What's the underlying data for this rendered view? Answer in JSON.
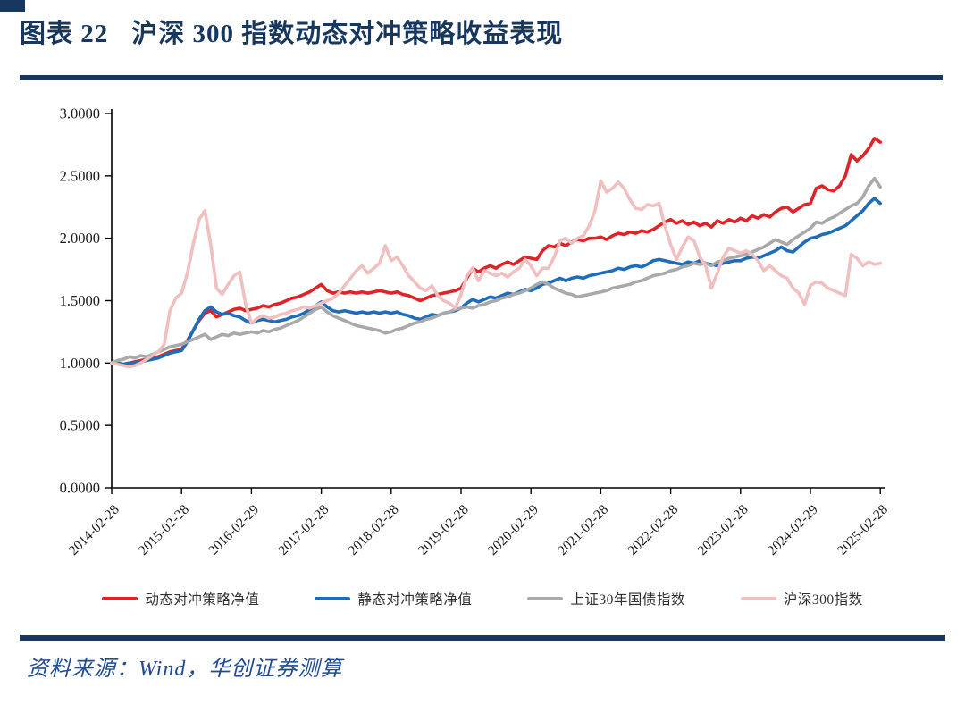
{
  "page": {
    "title_prefix": "图表 22",
    "title_text": "沪深 300 指数动态对冲策略收益表现",
    "source": "资料来源：Wind，华创证券测算",
    "accent_color": "#17375e",
    "source_color": "#1e4b91"
  },
  "chart_data": {
    "type": "line",
    "title": "沪深300指数动态对冲策略收益表现",
    "xlabel": "",
    "ylabel": "",
    "ylim": [
      0.0,
      3.0
    ],
    "y_tick_step": 0.5,
    "y_ticks": [
      "0.0000",
      "0.5000",
      "1.0000",
      "1.5000",
      "2.0000",
      "2.5000",
      "3.0000"
    ],
    "grid": false,
    "legend_position": "bottom",
    "x_unit": "monthly points from 2014-02 to 2025-02",
    "x_labels": [
      "2014-02-28",
      "2015-02-28",
      "2016-02-29",
      "2017-02-28",
      "2018-02-28",
      "2019-02-28",
      "2020-02-29",
      "2021-02-28",
      "2022-02-28",
      "2023-02-28",
      "2024-02-29",
      "2025-02-28"
    ],
    "x_label_months": [
      0,
      12,
      24,
      36,
      48,
      60,
      72,
      84,
      96,
      108,
      120,
      132
    ],
    "series": [
      {
        "name": "动态对冲策略净值",
        "color": "#de2428",
        "values": [
          1.0,
          1.0,
          0.99,
          1.0,
          1.01,
          1.02,
          1.03,
          1.04,
          1.05,
          1.07,
          1.09,
          1.1,
          1.11,
          1.18,
          1.26,
          1.34,
          1.4,
          1.42,
          1.37,
          1.39,
          1.41,
          1.43,
          1.44,
          1.42,
          1.43,
          1.44,
          1.46,
          1.45,
          1.47,
          1.48,
          1.5,
          1.52,
          1.53,
          1.55,
          1.57,
          1.6,
          1.63,
          1.58,
          1.56,
          1.57,
          1.56,
          1.57,
          1.56,
          1.57,
          1.56,
          1.57,
          1.58,
          1.57,
          1.56,
          1.57,
          1.55,
          1.54,
          1.52,
          1.5,
          1.52,
          1.54,
          1.55,
          1.56,
          1.57,
          1.58,
          1.6,
          1.68,
          1.76,
          1.73,
          1.76,
          1.78,
          1.76,
          1.79,
          1.81,
          1.79,
          1.82,
          1.85,
          1.84,
          1.83,
          1.9,
          1.94,
          1.93,
          1.96,
          1.94,
          1.97,
          1.99,
          1.98,
          2.0,
          2.0,
          2.01,
          1.99,
          2.02,
          2.04,
          2.03,
          2.05,
          2.04,
          2.06,
          2.05,
          2.07,
          2.1,
          2.13,
          2.15,
          2.12,
          2.14,
          2.11,
          2.13,
          2.1,
          2.12,
          2.09,
          2.14,
          2.12,
          2.15,
          2.13,
          2.16,
          2.14,
          2.18,
          2.16,
          2.19,
          2.17,
          2.21,
          2.24,
          2.25,
          2.21,
          2.24,
          2.27,
          2.28,
          2.4,
          2.42,
          2.39,
          2.38,
          2.42,
          2.5,
          2.67,
          2.62,
          2.66,
          2.72,
          2.8,
          2.77
        ]
      },
      {
        "name": "静态对冲策略净值",
        "color": "#1f6db8",
        "values": [
          1.0,
          1.0,
          0.99,
          1.0,
          1.0,
          1.01,
          1.02,
          1.03,
          1.04,
          1.06,
          1.08,
          1.09,
          1.1,
          1.17,
          1.26,
          1.35,
          1.42,
          1.45,
          1.41,
          1.39,
          1.4,
          1.38,
          1.37,
          1.34,
          1.32,
          1.34,
          1.35,
          1.34,
          1.33,
          1.34,
          1.35,
          1.37,
          1.38,
          1.4,
          1.43,
          1.46,
          1.49,
          1.45,
          1.42,
          1.41,
          1.42,
          1.41,
          1.4,
          1.41,
          1.4,
          1.41,
          1.4,
          1.41,
          1.4,
          1.41,
          1.39,
          1.38,
          1.36,
          1.35,
          1.37,
          1.39,
          1.38,
          1.4,
          1.41,
          1.42,
          1.44,
          1.48,
          1.51,
          1.49,
          1.51,
          1.53,
          1.52,
          1.54,
          1.56,
          1.55,
          1.57,
          1.59,
          1.58,
          1.6,
          1.63,
          1.64,
          1.66,
          1.68,
          1.66,
          1.68,
          1.69,
          1.68,
          1.7,
          1.71,
          1.72,
          1.73,
          1.74,
          1.76,
          1.75,
          1.77,
          1.78,
          1.77,
          1.79,
          1.82,
          1.83,
          1.82,
          1.81,
          1.8,
          1.79,
          1.81,
          1.8,
          1.82,
          1.8,
          1.79,
          1.78,
          1.8,
          1.81,
          1.82,
          1.82,
          1.84,
          1.85,
          1.84,
          1.86,
          1.88,
          1.9,
          1.93,
          1.9,
          1.89,
          1.93,
          1.97,
          2.0,
          2.01,
          2.03,
          2.04,
          2.06,
          2.08,
          2.1,
          2.14,
          2.18,
          2.22,
          2.28,
          2.32,
          2.28
        ]
      },
      {
        "name": "上证30年国债指数",
        "color": "#a9a9a9",
        "values": [
          1.0,
          1.02,
          1.03,
          1.05,
          1.04,
          1.06,
          1.05,
          1.07,
          1.09,
          1.11,
          1.13,
          1.14,
          1.15,
          1.17,
          1.19,
          1.21,
          1.23,
          1.19,
          1.21,
          1.23,
          1.22,
          1.24,
          1.23,
          1.24,
          1.25,
          1.24,
          1.26,
          1.25,
          1.27,
          1.28,
          1.3,
          1.32,
          1.34,
          1.37,
          1.4,
          1.43,
          1.45,
          1.41,
          1.38,
          1.36,
          1.34,
          1.32,
          1.3,
          1.29,
          1.28,
          1.27,
          1.26,
          1.24,
          1.25,
          1.27,
          1.28,
          1.3,
          1.32,
          1.33,
          1.35,
          1.36,
          1.38,
          1.4,
          1.41,
          1.43,
          1.44,
          1.45,
          1.44,
          1.46,
          1.47,
          1.49,
          1.5,
          1.52,
          1.53,
          1.55,
          1.56,
          1.58,
          1.6,
          1.63,
          1.65,
          1.63,
          1.6,
          1.58,
          1.56,
          1.55,
          1.53,
          1.54,
          1.55,
          1.56,
          1.57,
          1.58,
          1.6,
          1.61,
          1.62,
          1.63,
          1.65,
          1.66,
          1.68,
          1.7,
          1.71,
          1.72,
          1.74,
          1.75,
          1.77,
          1.78,
          1.8,
          1.79,
          1.8,
          1.78,
          1.81,
          1.82,
          1.84,
          1.85,
          1.86,
          1.87,
          1.89,
          1.91,
          1.93,
          1.96,
          1.99,
          1.97,
          1.95,
          1.99,
          2.02,
          2.05,
          2.08,
          2.13,
          2.12,
          2.15,
          2.17,
          2.2,
          2.23,
          2.26,
          2.28,
          2.33,
          2.42,
          2.48,
          2.41
        ]
      },
      {
        "name": "沪深300指数",
        "color": "#f0bfc0",
        "values": [
          1.0,
          0.99,
          0.98,
          0.97,
          0.98,
          1.0,
          1.03,
          1.06,
          1.09,
          1.15,
          1.42,
          1.52,
          1.56,
          1.72,
          1.95,
          2.15,
          2.22,
          1.95,
          1.6,
          1.55,
          1.63,
          1.7,
          1.73,
          1.47,
          1.32,
          1.36,
          1.38,
          1.36,
          1.37,
          1.39,
          1.4,
          1.42,
          1.43,
          1.45,
          1.44,
          1.46,
          1.48,
          1.5,
          1.52,
          1.56,
          1.62,
          1.68,
          1.74,
          1.78,
          1.72,
          1.76,
          1.8,
          1.94,
          1.82,
          1.85,
          1.78,
          1.7,
          1.65,
          1.6,
          1.58,
          1.62,
          1.54,
          1.5,
          1.48,
          1.44,
          1.55,
          1.7,
          1.76,
          1.66,
          1.74,
          1.72,
          1.7,
          1.72,
          1.69,
          1.73,
          1.76,
          1.83,
          1.78,
          1.7,
          1.76,
          1.76,
          1.85,
          1.98,
          2.0,
          1.96,
          2.0,
          2.02,
          2.1,
          2.22,
          2.46,
          2.37,
          2.4,
          2.45,
          2.4,
          2.31,
          2.24,
          2.23,
          2.27,
          2.26,
          2.28,
          2.1,
          1.95,
          1.83,
          1.93,
          2.01,
          1.98,
          1.85,
          1.78,
          1.6,
          1.72,
          1.85,
          1.92,
          1.9,
          1.88,
          1.9,
          1.87,
          1.82,
          1.74,
          1.78,
          1.74,
          1.7,
          1.68,
          1.6,
          1.56,
          1.47,
          1.62,
          1.65,
          1.64,
          1.6,
          1.58,
          1.56,
          1.54,
          1.87,
          1.84,
          1.78,
          1.81,
          1.79,
          1.8
        ]
      }
    ]
  }
}
